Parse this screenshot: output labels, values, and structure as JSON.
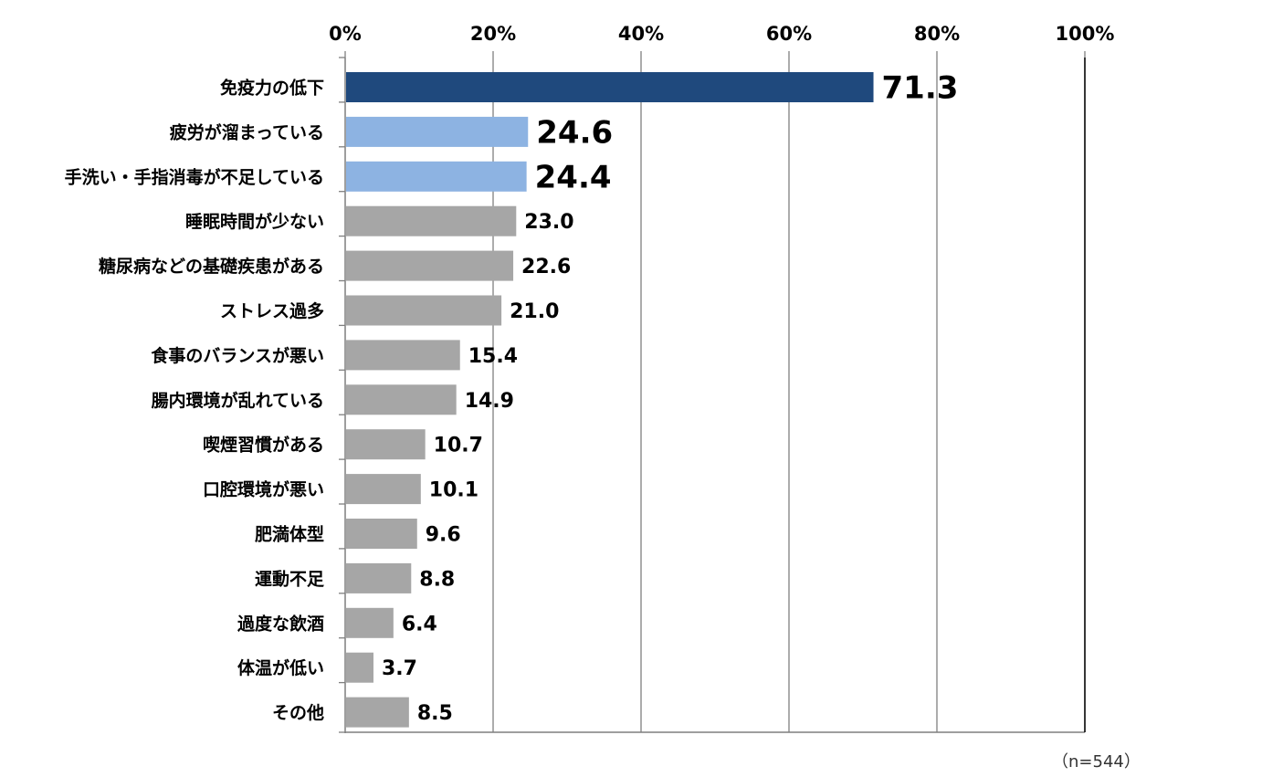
{
  "chart_data": {
    "type": "bar",
    "orientation": "horizontal",
    "title": "",
    "xlabel": "",
    "ylabel": "",
    "xlim": [
      0,
      100
    ],
    "x_ticks": [
      "0%",
      "20%",
      "40%",
      "60%",
      "80%",
      "100%"
    ],
    "tick_values": [
      0,
      20,
      40,
      60,
      80,
      100
    ],
    "grid": true,
    "legend": "none",
    "categories": [
      "免疫力の低下",
      "疲労が溜まっている",
      "手洗い・手指消毒が不足している",
      "睡眠時間が少ない",
      "糖尿病などの基礎疾患がある",
      "ストレス過多",
      "食事のバランスが悪い",
      "腸内環境が乱れている",
      "喫煙習慣がある",
      "口腔環境が悪い",
      "肥満体型",
      "運動不足",
      "過度な飲酒",
      "体温が低い",
      "その他"
    ],
    "values": [
      71.3,
      24.6,
      24.4,
      23.0,
      22.6,
      21.0,
      15.4,
      14.9,
      10.7,
      10.1,
      9.6,
      8.8,
      6.4,
      3.7,
      8.5
    ],
    "value_labels": [
      "71.3",
      "24.6",
      "24.4",
      "23.0",
      "22.6",
      "21.0",
      "15.4",
      "14.9",
      "10.7",
      "10.1",
      "9.6",
      "8.8",
      "6.4",
      "3.7",
      "8.5"
    ],
    "colors": {
      "top": "#1f497d",
      "highlight": "#8db3e2",
      "default": "#a6a6a6",
      "grid": "#7f7f7f",
      "axis": "#000000"
    },
    "bar_color_groups": [
      "top",
      "highlight",
      "highlight",
      "default",
      "default",
      "default",
      "default",
      "default",
      "default",
      "default",
      "default",
      "default",
      "default",
      "default",
      "default"
    ],
    "note": "（n=544）"
  }
}
